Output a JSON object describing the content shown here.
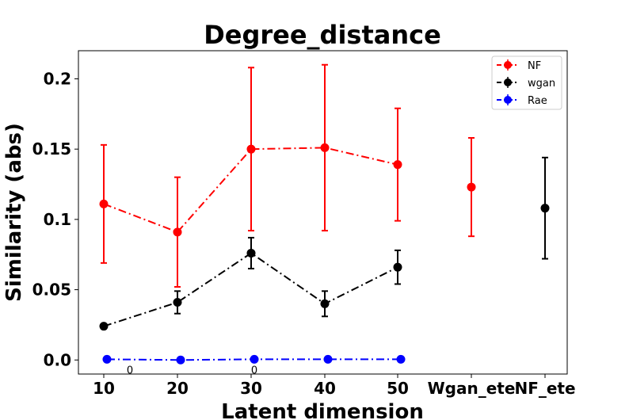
{
  "chart_data": {
    "type": "line",
    "title": "Degree_distance",
    "xlabel": "Latent dimension",
    "ylabel": "Similarity (abs)",
    "ylim": [
      -0.01,
      0.22
    ],
    "yticks": [
      0.0,
      0.05,
      0.1,
      0.15,
      0.2
    ],
    "ytick_labels": [
      "0.0",
      "0.05",
      "0.1",
      "0.15",
      "0.2"
    ],
    "categories": [
      "10",
      "20",
      "30",
      "40",
      "50",
      "Wgan_ete",
      "NF_ete"
    ],
    "grid": false,
    "legend_position": "top-right",
    "series": [
      {
        "name": "NF",
        "color": "#ff0000",
        "points": [
          {
            "cat": 0,
            "y": 0.111,
            "err": 0.042
          },
          {
            "cat": 1,
            "y": 0.091,
            "err": 0.039
          },
          {
            "cat": 2,
            "y": 0.15,
            "err": 0.058
          },
          {
            "cat": 3,
            "y": 0.151,
            "err": 0.059
          },
          {
            "cat": 4,
            "y": 0.139,
            "err": 0.04
          }
        ],
        "extra_points": [
          {
            "cat": 5,
            "y": 0.123,
            "err": 0.035
          }
        ]
      },
      {
        "name": "wgan",
        "color": "#000000",
        "points": [
          {
            "cat": 0,
            "y": 0.024,
            "err": 0.0
          },
          {
            "cat": 1,
            "y": 0.041,
            "err": 0.008
          },
          {
            "cat": 2,
            "y": 0.076,
            "err": 0.011
          },
          {
            "cat": 3,
            "y": 0.04,
            "err": 0.009
          },
          {
            "cat": 4,
            "y": 0.066,
            "err": 0.012
          }
        ],
        "extra_points": [
          {
            "cat": 6,
            "y": 0.108,
            "err": 0.036
          }
        ]
      },
      {
        "name": "Rae",
        "color": "#0000ff",
        "points": [
          {
            "cat": 0,
            "y": 0.0005,
            "err": 0.0
          },
          {
            "cat": 1,
            "y": 0.0,
            "err": 0.0
          },
          {
            "cat": 2,
            "y": 0.0005,
            "err": 0.0
          },
          {
            "cat": 3,
            "y": 0.0005,
            "err": 0.0
          },
          {
            "cat": 4,
            "y": 0.0005,
            "err": 0.0
          }
        ],
        "extra_points": []
      }
    ],
    "annotations": [
      {
        "text": "0",
        "cat": 0,
        "y": -0.007
      },
      {
        "text": "0",
        "cat": 2,
        "y": -0.007
      }
    ]
  }
}
